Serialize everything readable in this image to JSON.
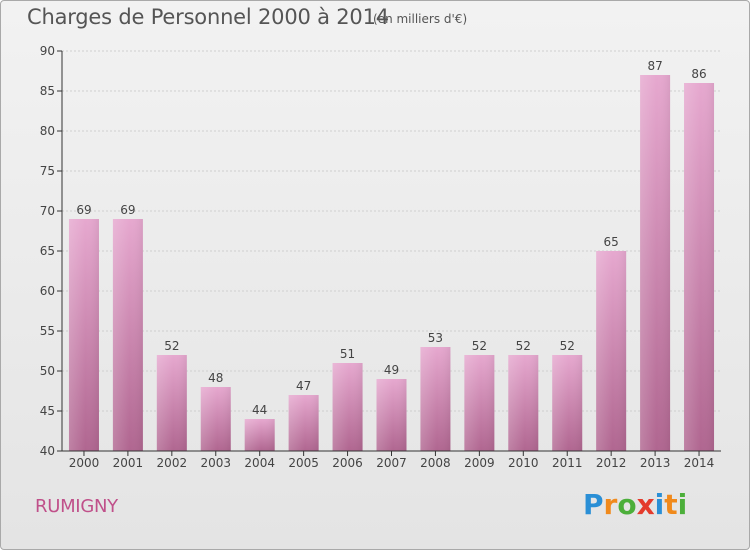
{
  "chart_title": "Charges de Personnel 2000 à 2014",
  "chart_unit": "(en milliers d'€)",
  "commune": "RUMIGNY",
  "logo": {
    "text": "Proxiti",
    "letters": [
      {
        "char": "P",
        "color": "#2a8fd6"
      },
      {
        "char": "r",
        "color": "#f08a1c"
      },
      {
        "char": "o",
        "color": "#4caf3a"
      },
      {
        "char": "x",
        "color": "#e43b2c"
      },
      {
        "char": "i",
        "color": "#2a8fd6"
      },
      {
        "char": "t",
        "color": "#f08a1c"
      },
      {
        "char": "i",
        "color": "#4caf3a"
      }
    ]
  },
  "colors": {
    "bar_top": "#e6a8cf",
    "bar_bottom": "#b06690",
    "axis": "#333333",
    "grid": "#cfcfcf",
    "text": "#444444"
  },
  "chart_data": {
    "type": "bar",
    "categories": [
      "2000",
      "2001",
      "2002",
      "2003",
      "2004",
      "2005",
      "2006",
      "2007",
      "2008",
      "2009",
      "2010",
      "2011",
      "2012",
      "2013",
      "2014"
    ],
    "values": [
      69,
      69,
      52,
      48,
      44,
      47,
      51,
      49,
      53,
      52,
      52,
      52,
      65,
      87,
      86
    ],
    "title": "Charges de Personnel 2000 à 2014",
    "unit_label": "(en milliers d'€)",
    "ylim": [
      40,
      90
    ],
    "yticks": [
      40,
      45,
      50,
      55,
      60,
      65,
      70,
      75,
      80,
      85,
      90
    ],
    "grid": true
  }
}
